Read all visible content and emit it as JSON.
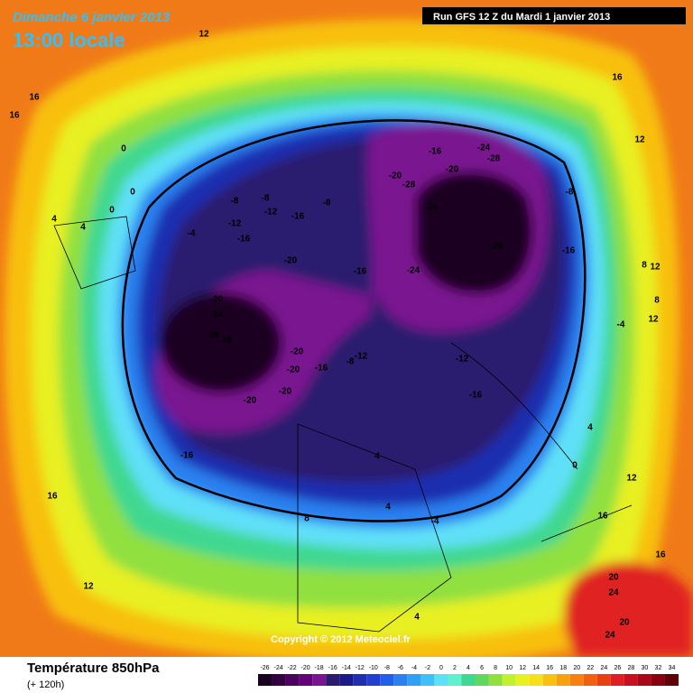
{
  "header": {
    "date": "Dimanche 6 janvier 2013",
    "time": "13:00 locale",
    "run": "Run GFS 12 Z du Mardi 1 janvier 2013"
  },
  "copyright": "Copyright © 2012 Meteociel.fr",
  "footer": {
    "title": "Température 850hPa",
    "subtitle": "(+ 120h)"
  },
  "legend": {
    "values": [
      -26,
      -24,
      -22,
      -20,
      -18,
      -16,
      -14,
      -12,
      -10,
      -8,
      -6,
      -4,
      -2,
      0,
      2,
      4,
      6,
      8,
      10,
      12,
      14,
      16,
      18,
      20,
      22,
      24,
      26,
      28,
      30,
      32,
      34
    ],
    "colors": [
      "#1a0020",
      "#330040",
      "#4d0060",
      "#66007a",
      "#7a1490",
      "#2c1a6e",
      "#1a1a8c",
      "#1f2fb0",
      "#2040d0",
      "#2060e8",
      "#2a80f0",
      "#30a0f4",
      "#40c0f8",
      "#60e0f8",
      "#60f0d0",
      "#40d890",
      "#60d860",
      "#90e040",
      "#c0f030",
      "#e8f020",
      "#f8e018",
      "#f8c010",
      "#f8a010",
      "#f88010",
      "#f06010",
      "#e84010",
      "#e02020",
      "#c81020",
      "#a80818",
      "#880010",
      "#600008"
    ]
  },
  "contour_labels": [
    12,
    16,
    16,
    16,
    12,
    0,
    0,
    0,
    4,
    4,
    -4,
    -8,
    -8,
    -12,
    -12,
    -16,
    -8,
    -16,
    -20,
    -20,
    -24,
    -28,
    -28,
    -20,
    -20,
    -16,
    -16,
    -20,
    -20,
    -12,
    -8,
    -16,
    -12,
    -16,
    -20,
    -28,
    -24,
    -28,
    -24,
    -28,
    -20,
    -16,
    -24,
    -16,
    -8,
    -4,
    0,
    4,
    8,
    8,
    12,
    12,
    12,
    16,
    16,
    20,
    24,
    20,
    24,
    4,
    4,
    -4,
    8,
    12,
    16,
    4
  ]
}
